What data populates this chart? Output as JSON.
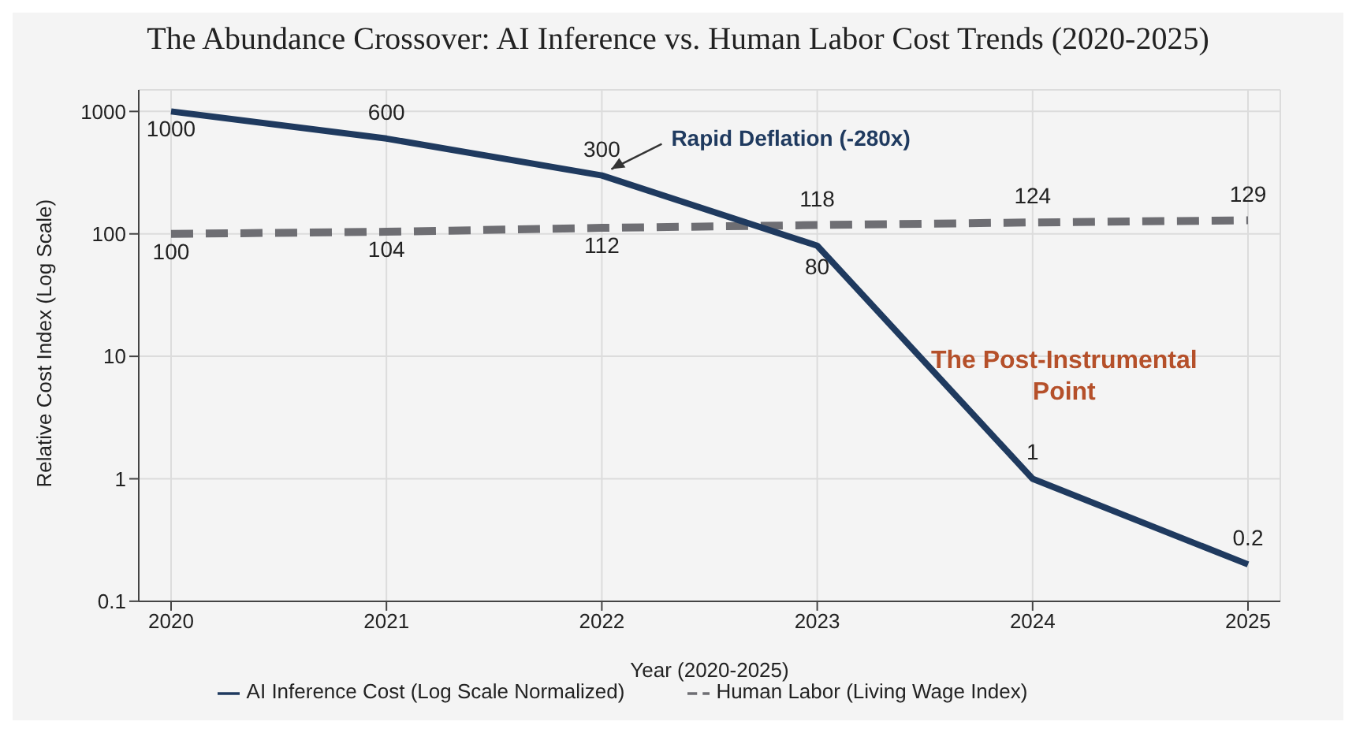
{
  "chart_data": {
    "type": "line",
    "title": "The Abundance Crossover: AI Inference vs. Human Labor Cost Trends (2020-2025)",
    "xlabel": "Year (2020-2025)",
    "ylabel": "Relative Cost Index (Log Scale)",
    "x": [
      2020,
      2021,
      2022,
      2023,
      2024,
      2025
    ],
    "series": [
      {
        "name": "Human Labor (Living Wage Index)",
        "color": "#6e6e73",
        "line_style": "dashed",
        "values": [
          100,
          104,
          112,
          118,
          124,
          129
        ]
      },
      {
        "name": "AI Inference Cost (Log Scale Normalized)",
        "color": "#1f3a5f",
        "line_style": "solid",
        "values": [
          1000,
          600,
          300,
          80,
          1,
          0.2
        ]
      }
    ],
    "log": "y",
    "xlim": [
      2019.85,
      2025.15
    ],
    "ylim": [
      0.1,
      1500
    ],
    "xticks": [
      2020,
      2021,
      2022,
      2023,
      2024,
      2025
    ],
    "yticks": [
      0.1,
      1,
      10,
      100,
      1000
    ],
    "grid": true,
    "legend": "bottom",
    "marker": "none",
    "data_labels": true,
    "annotations": [
      {
        "text": "Rapid Deflation (-280x)",
        "x": 2022,
        "y": 300
      },
      {
        "text": "The Post-Instrumental Point",
        "x": 2024,
        "y": 1
      }
    ]
  }
}
